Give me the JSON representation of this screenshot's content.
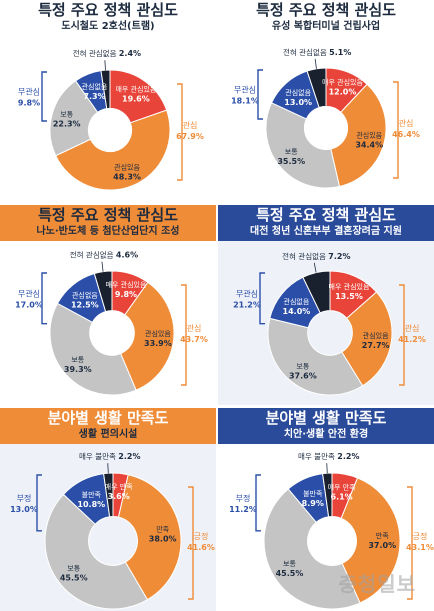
{
  "colors": {
    "dark_navy": "#1d2b3f",
    "very_negative": "#19202e",
    "negative": "#2b4fa8",
    "neutral": "#c4c4c4",
    "positive": "#ef8c38",
    "very_positive": "#e8443a",
    "orange_band": "#ef8c38",
    "navy_band": "#2a4a9a"
  },
  "watermark": "충청일보",
  "chart_data": [
    {
      "type": "pie",
      "title": "특정 주요 정책 관심도",
      "subtitle": "도시철도 2호선(트램)",
      "slices": [
        {
          "label": "매우 관심있음",
          "value": 19.6
        },
        {
          "label": "관심있음",
          "value": 48.3
        },
        {
          "label": "보통",
          "value": 22.3
        },
        {
          "label": "관심없음",
          "value": 7.3
        },
        {
          "label": "전혀 관심없음",
          "value": 2.4
        }
      ],
      "groups": [
        {
          "label": "관심",
          "value": 67.9
        },
        {
          "label": "무관심",
          "value": 9.8
        }
      ]
    },
    {
      "type": "pie",
      "title": "특정 주요 정책 관심도",
      "subtitle": "유성 복합터미널 건립사업",
      "slices": [
        {
          "label": "매우 관심있음",
          "value": 12.0
        },
        {
          "label": "관심있음",
          "value": 34.4
        },
        {
          "label": "보통",
          "value": 35.5
        },
        {
          "label": "관심없음",
          "value": 13.0
        },
        {
          "label": "전혀 관심없음",
          "value": 5.1
        }
      ],
      "groups": [
        {
          "label": "관심",
          "value": 46.4
        },
        {
          "label": "무관심",
          "value": 18.1
        }
      ]
    },
    {
      "type": "pie",
      "title": "특정 주요 정책 관심도",
      "subtitle": "나노·반도체 등 첨단산업단지 조성",
      "slices": [
        {
          "label": "매우 관심있음",
          "value": 9.8
        },
        {
          "label": "관심있음",
          "value": 33.9
        },
        {
          "label": "보통",
          "value": 39.3
        },
        {
          "label": "관심없음",
          "value": 12.5
        },
        {
          "label": "전혀 관심없음",
          "value": 4.6
        }
      ],
      "groups": [
        {
          "label": "관심",
          "value": 43.7
        },
        {
          "label": "무관심",
          "value": 17.0
        }
      ]
    },
    {
      "type": "pie",
      "title": "특정 주요 정책 관심도",
      "subtitle": "대전 청년 신혼부부 결혼장려금 지원",
      "slices": [
        {
          "label": "매우 관심있음",
          "value": 13.5
        },
        {
          "label": "관심있음",
          "value": 27.7
        },
        {
          "label": "보통",
          "value": 37.6
        },
        {
          "label": "관심없음",
          "value": 14.0
        },
        {
          "label": "전혀 관심없음",
          "value": 7.2
        }
      ],
      "groups": [
        {
          "label": "관심",
          "value": 41.2
        },
        {
          "label": "무관심",
          "value": 21.2
        }
      ]
    },
    {
      "type": "pie",
      "title": "분야별 생활 만족도",
      "subtitle": "생활 편의시설",
      "slices": [
        {
          "label": "매우 만족",
          "value": 3.6
        },
        {
          "label": "만족",
          "value": 38.0
        },
        {
          "label": "보통",
          "value": 45.5
        },
        {
          "label": "불만족",
          "value": 10.8
        },
        {
          "label": "매우 불만족",
          "value": 2.2
        }
      ],
      "groups": [
        {
          "label": "긍정",
          "value": 41.6
        },
        {
          "label": "부정",
          "value": 13.0
        }
      ]
    },
    {
      "type": "pie",
      "title": "분야별 생활 만족도",
      "subtitle": "치안·생활 안전 환경",
      "slices": [
        {
          "label": "매우 만족",
          "value": 6.1
        },
        {
          "label": "만족",
          "value": 37.0
        },
        {
          "label": "보통",
          "value": 45.5
        },
        {
          "label": "불만족",
          "value": 8.9
        },
        {
          "label": "매우 불만족",
          "value": 2.2
        }
      ],
      "groups": [
        {
          "label": "긍정",
          "value": 43.1
        },
        {
          "label": "부정",
          "value": 11.2
        }
      ]
    }
  ]
}
